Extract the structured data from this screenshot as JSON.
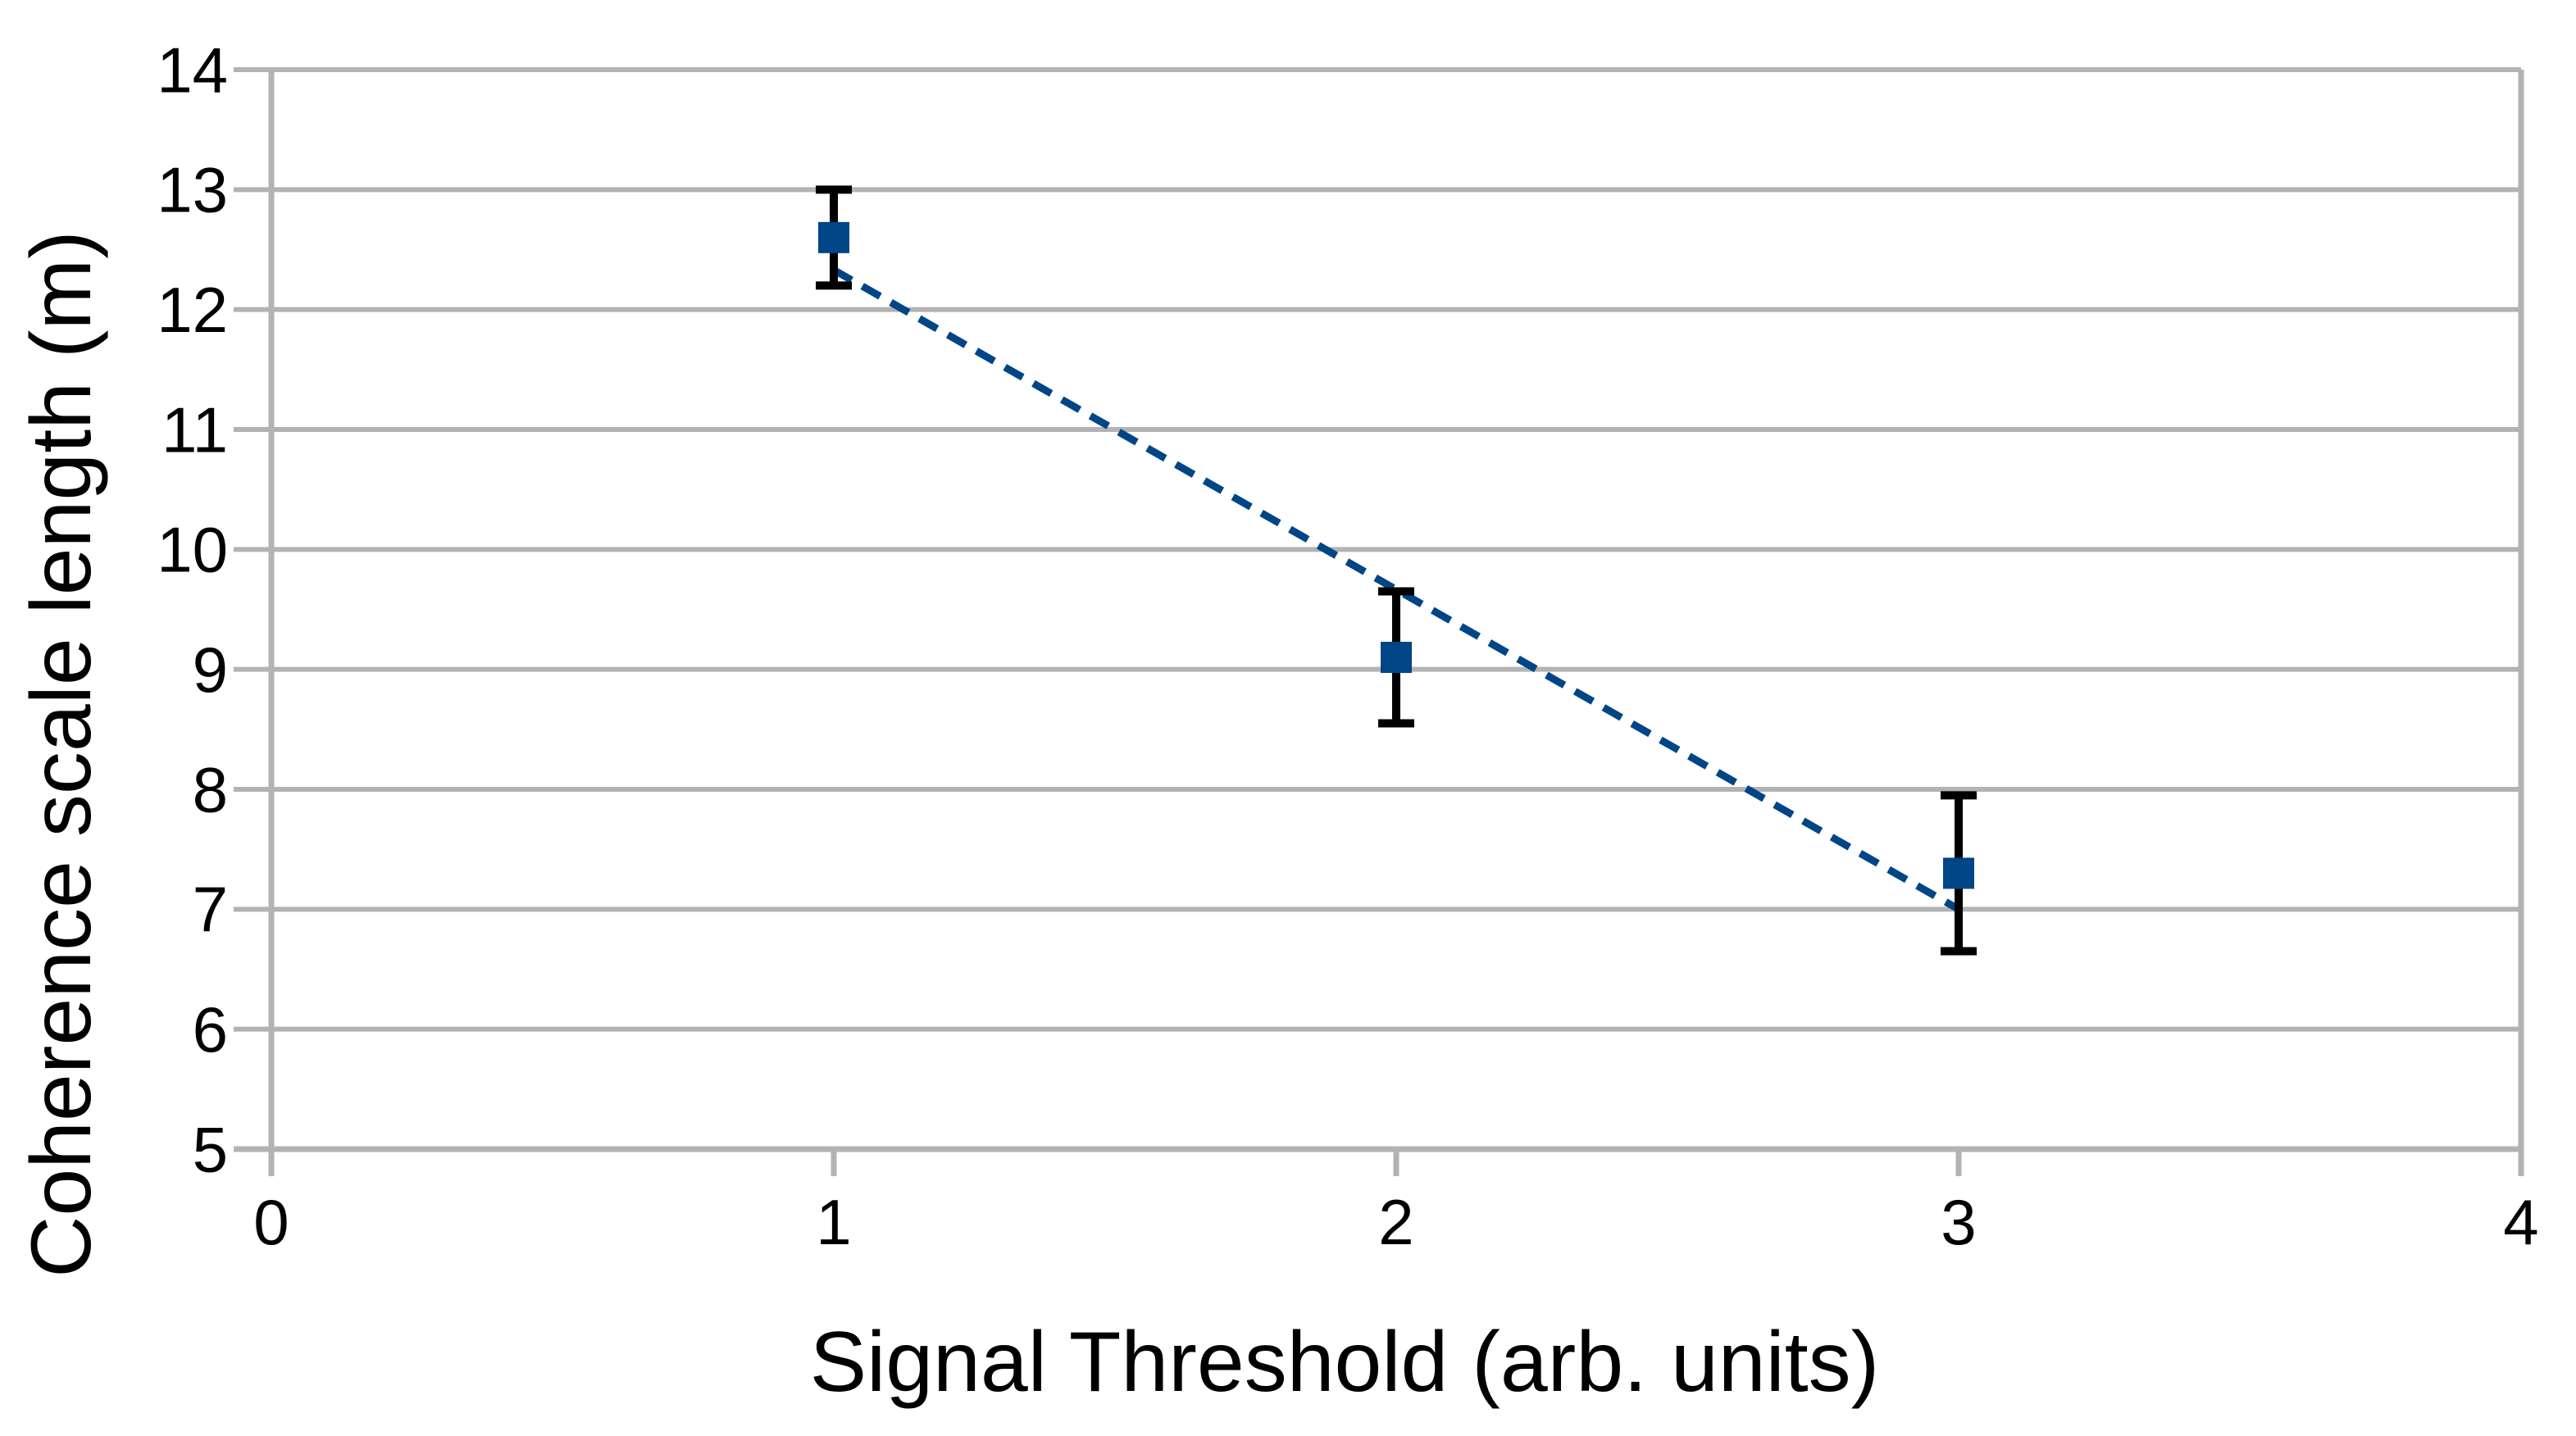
{
  "page": {
    "background": "#ffffff"
  },
  "chart_data": {
    "type": "scatter",
    "title": "",
    "xlabel": "Signal Threshold (arb. units)",
    "ylabel": "Coherence scale length (m)",
    "xlim": [
      0,
      4
    ],
    "ylim": [
      5,
      14
    ],
    "xticks": [
      "0",
      "1",
      "2",
      "3",
      "4"
    ],
    "yticks": [
      "5",
      "6",
      "7",
      "8",
      "9",
      "10",
      "11",
      "12",
      "13",
      "14"
    ],
    "grid": "horizontal-only",
    "legend": "none",
    "series": [
      {
        "marker": "filled-square",
        "marker_color": "#004586",
        "error_bar_color": "#000000",
        "points": [
          {
            "x": 1,
            "y": 12.6,
            "yerr": 0.4
          },
          {
            "x": 2,
            "y": 9.1,
            "yerr": 0.55
          },
          {
            "x": 3,
            "y": 7.3,
            "yerr": 0.65
          }
        ]
      }
    ],
    "trendline": {
      "style": "dashed",
      "color": "#004586",
      "points": [
        {
          "x": 1,
          "y": 12.33
        },
        {
          "x": 3,
          "y": 7.0
        }
      ]
    },
    "colors": {
      "gridline": "#b3b3b3",
      "axis": "#b3b3b3",
      "tick_text": "#000000"
    }
  }
}
